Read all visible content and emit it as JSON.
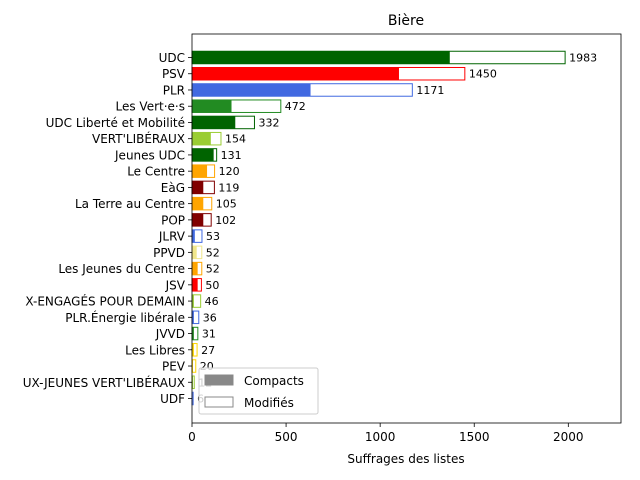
{
  "chart_data": {
    "type": "bar",
    "orientation": "horizontal",
    "title": "Bière",
    "xlabel": "Suffrages des listes",
    "ylabel": "",
    "xlim": [
      0,
      2280
    ],
    "xticks": [
      0,
      500,
      1000,
      1500,
      2000
    ],
    "grid": false,
    "legend_position": "lower-left",
    "legend": [
      {
        "label": "Compacts",
        "style": "filled",
        "color": "#888888"
      },
      {
        "label": "Modifiés",
        "style": "outline",
        "color": "#888888"
      }
    ],
    "categories": [
      {
        "name": "UDC",
        "compact": 1370,
        "total": 1983,
        "color": "#006400"
      },
      {
        "name": "PSV",
        "compact": 1100,
        "total": 1450,
        "color": "#ff0000"
      },
      {
        "name": "PLR",
        "compact": 630,
        "total": 1171,
        "color": "#4169e1"
      },
      {
        "name": "Les Vert·e·s",
        "compact": 210,
        "total": 472,
        "color": "#228b22"
      },
      {
        "name": "UDC Liberté et Mobilité",
        "compact": 230,
        "total": 332,
        "color": "#006400"
      },
      {
        "name": "VERT'LIBÉRAUX",
        "compact": 100,
        "total": 154,
        "color": "#9acd32"
      },
      {
        "name": "Jeunes UDC",
        "compact": 115,
        "total": 131,
        "color": "#006400"
      },
      {
        "name": "Le Centre",
        "compact": 80,
        "total": 120,
        "color": "#ffa500"
      },
      {
        "name": "EàG",
        "compact": 60,
        "total": 119,
        "color": "#800000"
      },
      {
        "name": "La Terre au Centre",
        "compact": 60,
        "total": 105,
        "color": "#ffa500"
      },
      {
        "name": "POP",
        "compact": 60,
        "total": 102,
        "color": "#800000"
      },
      {
        "name": "JLRV",
        "compact": 15,
        "total": 53,
        "color": "#4169e1"
      },
      {
        "name": "PPVD",
        "compact": 25,
        "total": 52,
        "color": "#f0e68c"
      },
      {
        "name": "Les Jeunes du Centre",
        "compact": 30,
        "total": 52,
        "color": "#ffa500"
      },
      {
        "name": "JSV",
        "compact": 30,
        "total": 50,
        "color": "#ff0000"
      },
      {
        "name": "X-ENGAGÉS POUR DEMAIN",
        "compact": 10,
        "total": 46,
        "color": "#9acd32"
      },
      {
        "name": "PLR.Énergie libérale",
        "compact": 10,
        "total": 36,
        "color": "#4169e1"
      },
      {
        "name": "JVVD",
        "compact": 10,
        "total": 31,
        "color": "#228b22"
      },
      {
        "name": "Les Libres",
        "compact": 10,
        "total": 27,
        "color": "#ffd700"
      },
      {
        "name": "PEV",
        "compact": 5,
        "total": 20,
        "color": "#ffd700"
      },
      {
        "name": "UX-JEUNES VERT'LIBÉRAUX",
        "compact": 5,
        "total": 12,
        "color": "#9acd32"
      },
      {
        "name": "UDF",
        "compact": 3,
        "total": 6,
        "color": "#4169e1"
      }
    ]
  }
}
